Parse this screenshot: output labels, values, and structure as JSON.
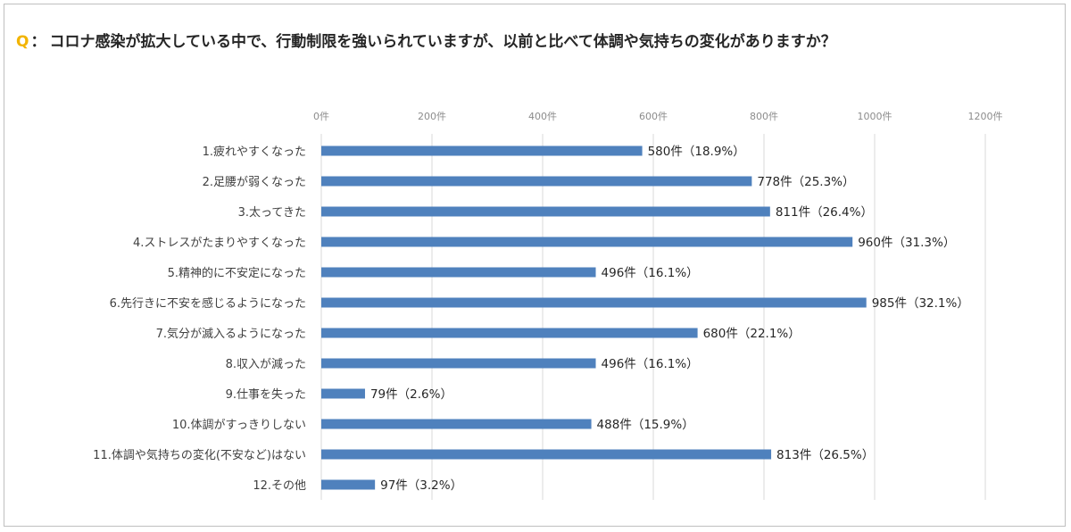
{
  "header": {
    "q_mark": "Q",
    "separator": "：",
    "question": "コロナ感染が拡大している中で、行動制限を強いられていますが、以前と比べて体調や気持ちの変化がありますか？"
  },
  "chart_data": {
    "type": "bar",
    "orientation": "horizontal",
    "title": "",
    "xlim": [
      0,
      1200
    ],
    "x_ticks": [
      0,
      200,
      400,
      600,
      800,
      1000,
      1200
    ],
    "x_tick_labels": [
      "0件",
      "200件",
      "400件",
      "600件",
      "800件",
      "1000件",
      "1200件"
    ],
    "x_axis_position": "top",
    "grid": true,
    "bar_color": "#4f81bd",
    "categories": [
      "1.疲れやすくなった",
      "2.足腰が弱くなった",
      "3.太ってきた",
      "4.ストレスがたまりやすくなった",
      "5.精神的に不安定になった",
      "6.先行きに不安を感じるようになった",
      "7.気分が滅入るようになった",
      "8.収入が減った",
      "9.仕事を失った",
      "10.体調がすっきりしない",
      "11.体調や気持ちの変化(不安など)はない",
      "12.その他"
    ],
    "values": [
      580,
      778,
      811,
      960,
      496,
      985,
      680,
      496,
      79,
      488,
      813,
      97
    ],
    "data_labels": [
      "580件（18.9%）",
      "778件（25.3%）",
      "811件（26.4%）",
      "960件（31.3%）",
      "496件（16.1%）",
      "985件（32.1%）",
      "680件（22.1%）",
      "496件（16.1%）",
      "79件（2.6%）",
      "488件（15.9%）",
      "813件（26.5%）",
      "97件（3.2%）"
    ]
  }
}
